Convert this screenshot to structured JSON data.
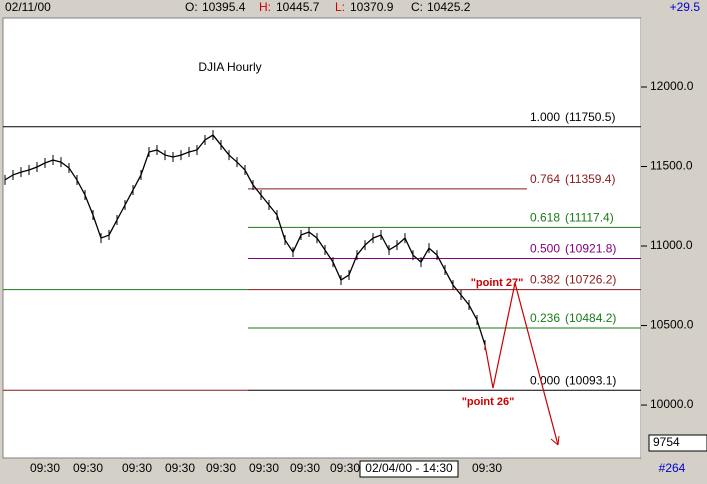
{
  "chart_data": {
    "type": "line",
    "title": "DJIA Hourly",
    "header": {
      "date": "02/11/00",
      "open_label": "O:",
      "open": "10395.4",
      "high_label": "H:",
      "high": "10445.7",
      "low_label": "L:",
      "low": "10370.9",
      "close_label": "C:",
      "close": "10425.2",
      "change": "+29.5"
    },
    "x_labels": [
      "09:30",
      "09:30",
      "09:30",
      "09:30",
      "09:30",
      "09:30",
      "09:30",
      "09:30",
      "09:30"
    ],
    "cursor_label": "02/04/00 - 14:30",
    "bar_count": "#264",
    "last_price_label": "9754",
    "series": [
      {
        "name": "DJIA",
        "color": "#000000",
        "values": [
          11416,
          11447,
          11465,
          11478,
          11497,
          11522,
          11541,
          11528,
          11491,
          11415,
          11321,
          11195,
          11050,
          11069,
          11164,
          11258,
          11352,
          11447,
          11591,
          11604,
          11572,
          11560,
          11572,
          11591,
          11604,
          11667,
          11698,
          11635,
          11572,
          11528,
          11478,
          11384,
          11321,
          11258,
          11195,
          11038,
          10962,
          11069,
          11088,
          11050,
          10975,
          10899,
          10786,
          10818,
          10943,
          11006,
          11050,
          11069,
          10975,
          11006,
          11050,
          10943,
          10899,
          10987,
          10943,
          10849,
          10755,
          10692,
          10629,
          10535,
          10377
        ]
      }
    ],
    "projection": {
      "color": "#cc0000",
      "values": [
        10377,
        10107,
        10767,
        9749
      ],
      "annotations": [
        "\"point 26\"",
        "\"point 27\""
      ]
    },
    "fib_levels": [
      {
        "label": "1.000",
        "value": 11750.5,
        "value_label": "(11750.5)",
        "color": "#000000"
      },
      {
        "label": "0.764",
        "value": 11359.4,
        "value_label": "(11359.4)",
        "color": "#8b1a1a"
      },
      {
        "label": "0.618",
        "value": 11117.4,
        "value_label": "(11117.4)",
        "color": "#1a7a1a"
      },
      {
        "label": "0.500",
        "value": 10921.8,
        "value_label": "(10921.8)",
        "color": "#800080"
      },
      {
        "label": "0.382",
        "value": 10726.2,
        "value_label": "(10726.2)",
        "color": "#8b1a1a"
      },
      {
        "label": "0.236",
        "value": 10484.2,
        "value_label": "(10484.2)",
        "color": "#1a7a1a"
      },
      {
        "label": "0.000",
        "value": 10093.1,
        "value_label": "(10093.1)",
        "color": "#000000"
      }
    ],
    "ylim": [
      9667,
      12434
    ],
    "yticks": [
      {
        "value": 10000,
        "label": "10000.0"
      },
      {
        "value": 10500,
        "label": "10500.0"
      },
      {
        "value": 11000,
        "label": "11000.0"
      },
      {
        "value": 11500,
        "label": "11500.0"
      },
      {
        "value": 12000,
        "label": "12000.0"
      }
    ]
  }
}
